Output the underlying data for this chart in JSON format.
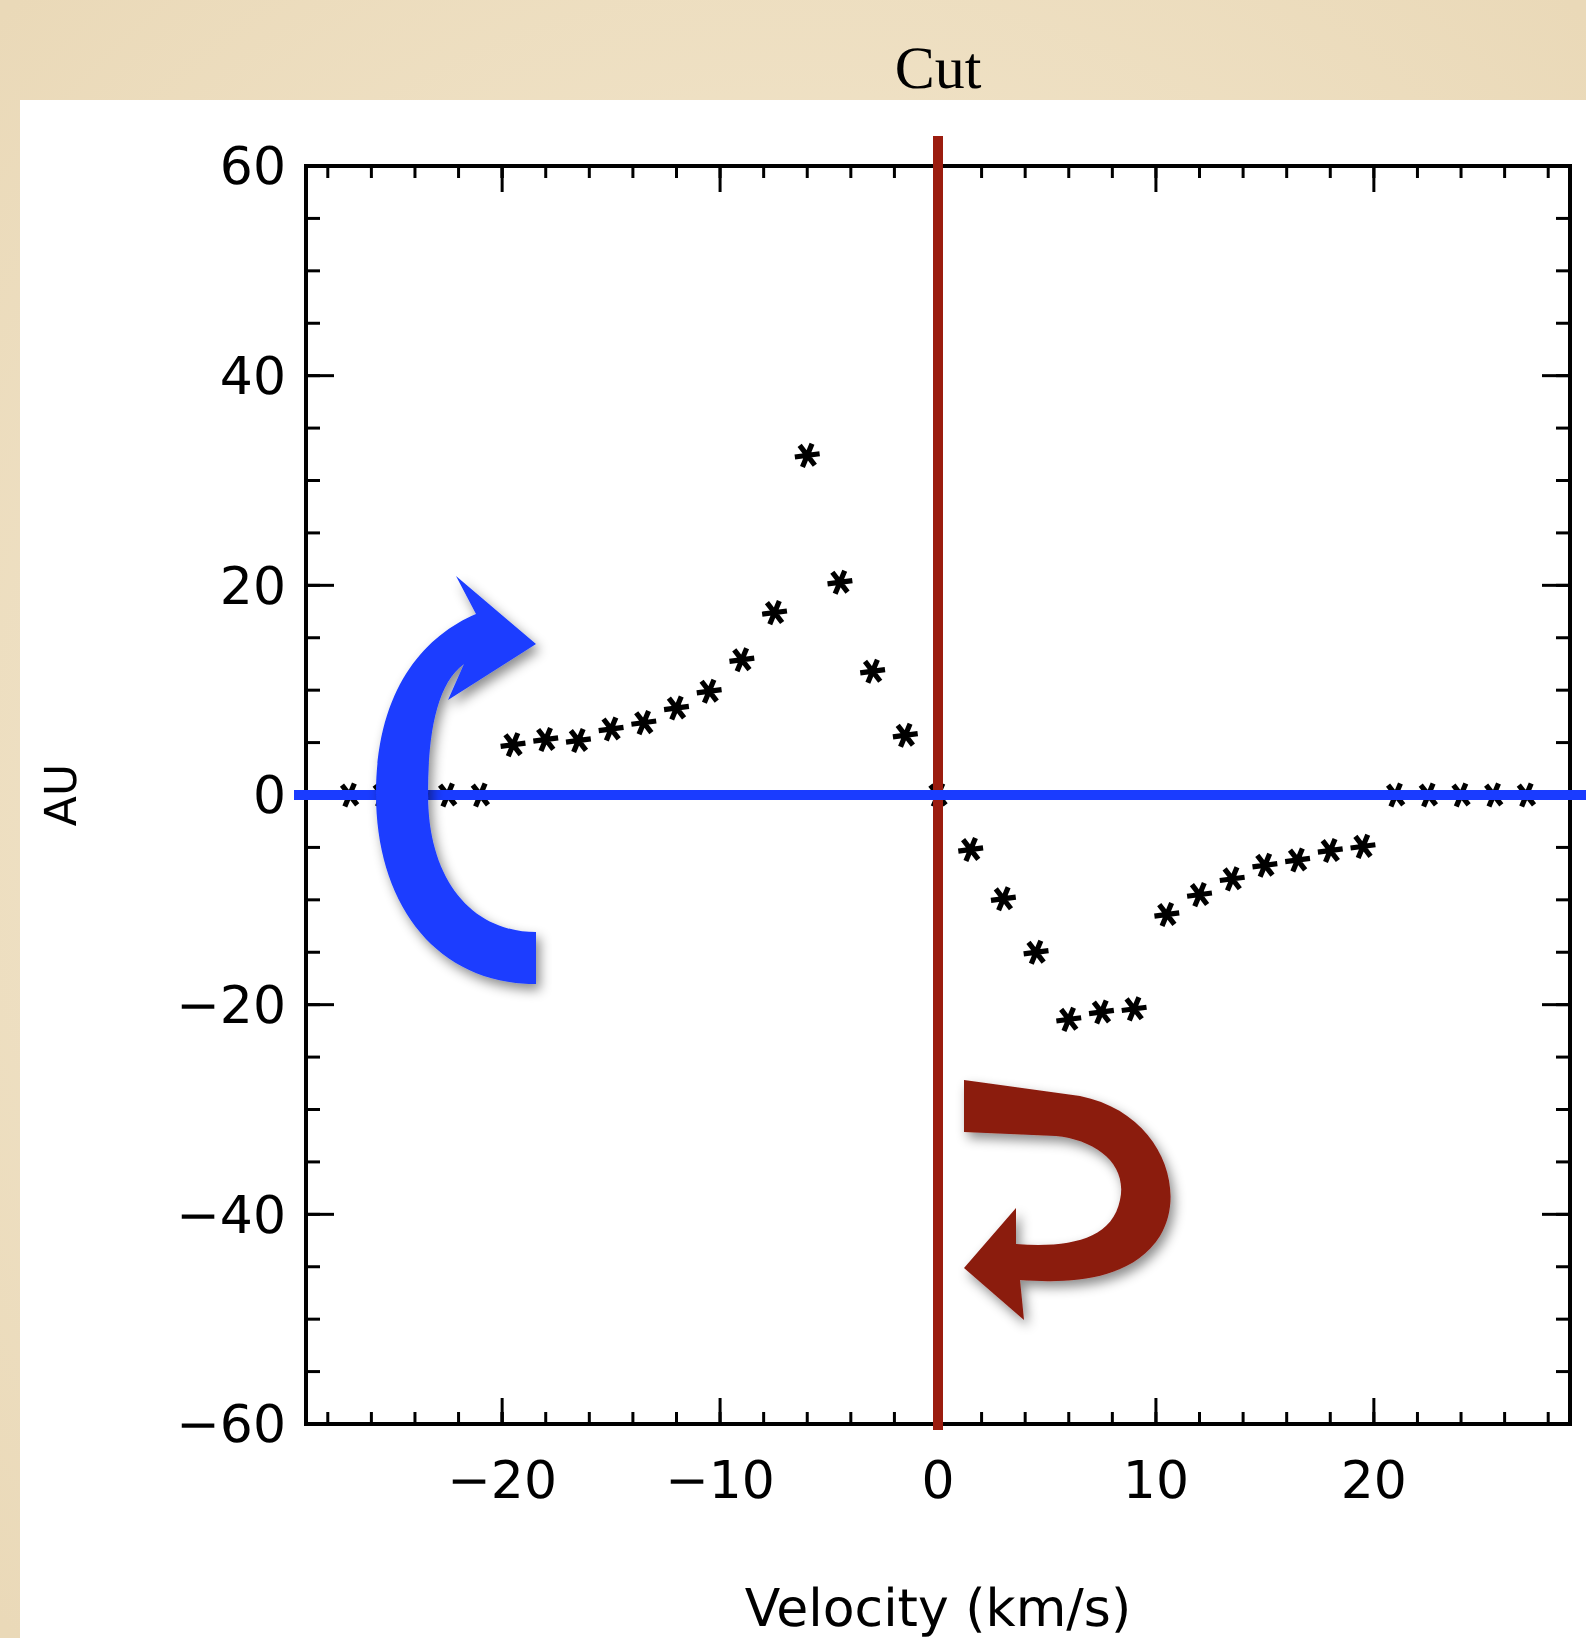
{
  "chart_data": {
    "type": "scatter",
    "xlabel": "Velocity (km/s)",
    "ylabel": "AU",
    "x": [
      -27,
      -25.5,
      -22.5,
      -21,
      -19.5,
      -18,
      -16.5,
      -15,
      -13.5,
      -12,
      -10.5,
      -9,
      -7.5,
      -6,
      -4.5,
      -3,
      -1.5,
      0,
      1.5,
      3,
      4.5,
      6,
      7.5,
      9,
      10.5,
      12,
      13.5,
      15,
      16.5,
      18,
      19.5,
      21,
      22.5,
      24,
      25.5,
      27
    ],
    "series": [
      {
        "color": "#000000",
        "values": [
          0,
          0,
          0,
          0,
          4.8,
          5.3,
          5.2,
          6.3,
          6.9,
          8.3,
          9.9,
          12.9,
          17.4,
          32.4,
          20.3,
          11.8,
          5.7,
          0,
          -5.2,
          -9.9,
          -15,
          -21.4,
          -20.7,
          -20.4,
          -11.4,
          -9.5,
          -8,
          -6.7,
          -6.2,
          -5.3,
          -4.9,
          0,
          0,
          0,
          0,
          0
        ]
      }
    ],
    "marker": "cross",
    "xlim": [
      -29,
      29
    ],
    "xticks": [
      -20,
      -10,
      0,
      10,
      20
    ],
    "ylim": [
      -60,
      60
    ],
    "yticks": [
      -60,
      -40,
      -20,
      0,
      20,
      40,
      60
    ],
    "ref_lines": [
      {
        "axis": "x",
        "value": 0,
        "label": "Cut",
        "color": "#9b1c0f"
      },
      {
        "axis": "y",
        "value": 0,
        "color": "#1a3cff"
      }
    ],
    "grid": false
  }
}
